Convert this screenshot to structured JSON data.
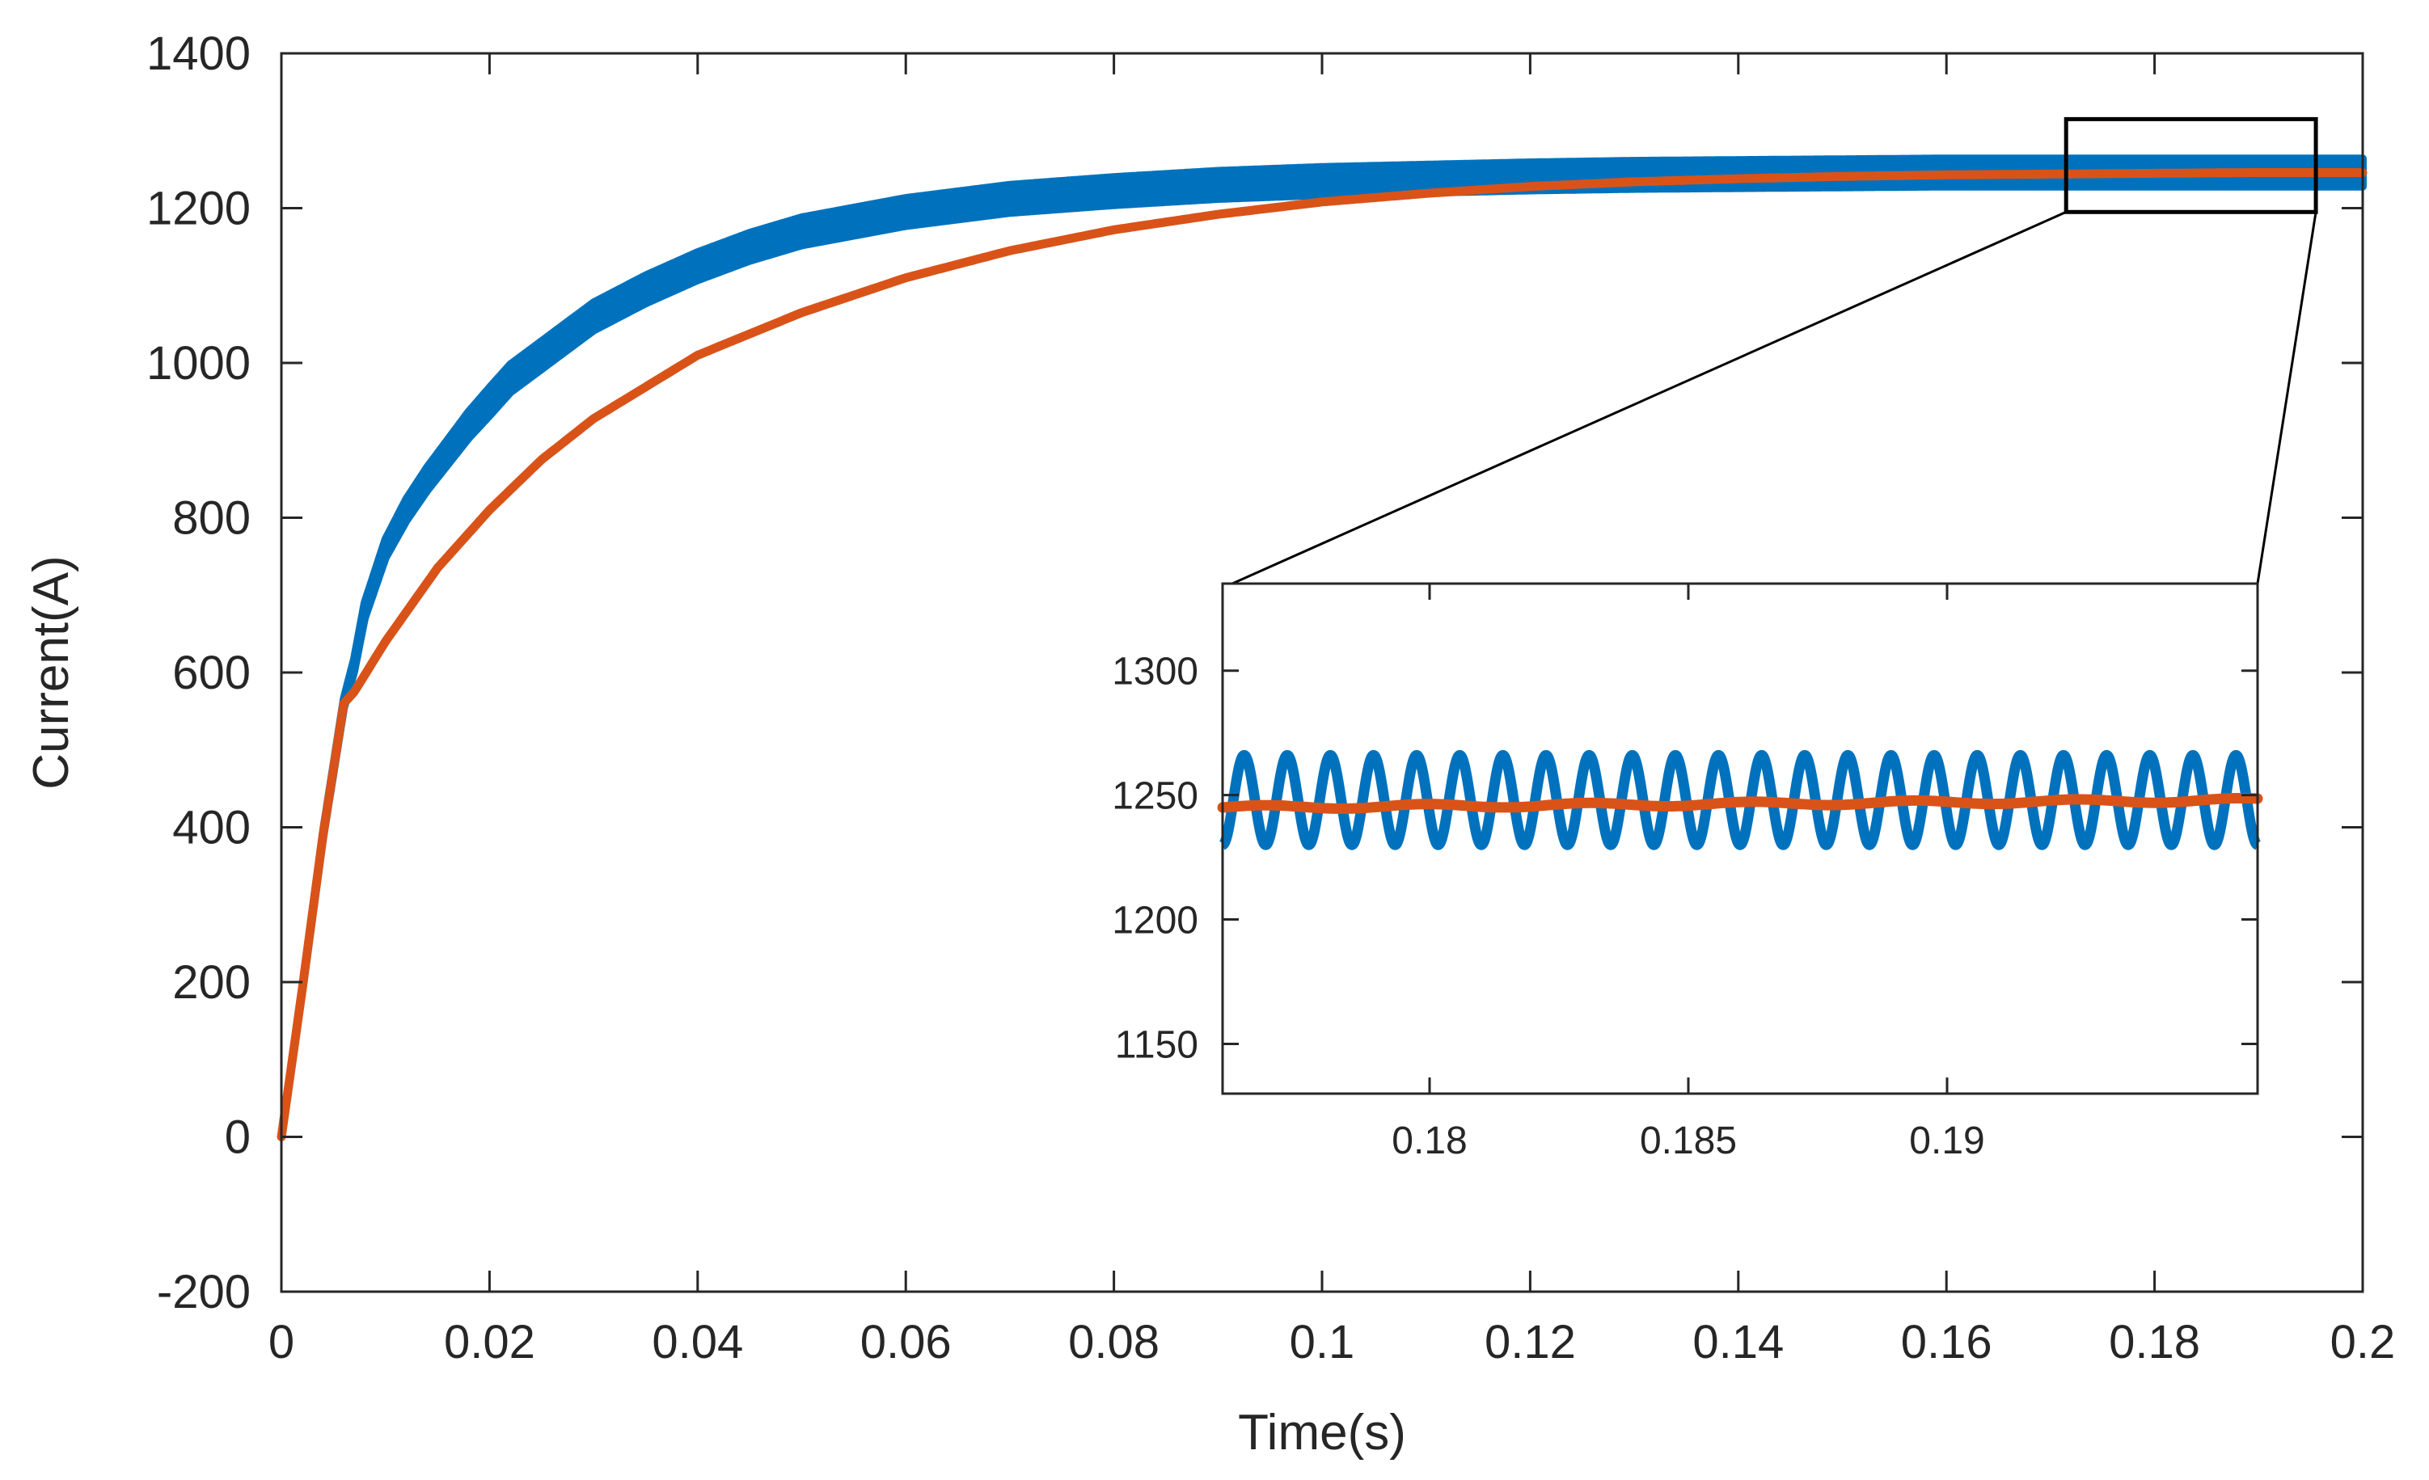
{
  "chart_data": {
    "type": "line",
    "title": "",
    "xlabel": "Time(s)",
    "ylabel": "Current(A)",
    "xlim": [
      0,
      0.2
    ],
    "ylim": [
      -200,
      1400
    ],
    "xticks": [
      0,
      0.02,
      0.04,
      0.06,
      0.08,
      0.1,
      0.12,
      0.14,
      0.16,
      0.18,
      0.2
    ],
    "xtick_labels": [
      "0",
      "0.02",
      "0.04",
      "0.06",
      "0.08",
      "0.1",
      "0.12",
      "0.14",
      "0.16",
      "0.18",
      "0.2"
    ],
    "yticks": [
      -200,
      0,
      200,
      400,
      600,
      800,
      1000,
      1200,
      1400
    ],
    "ytick_labels": [
      "-200",
      "0",
      "200",
      "400",
      "600",
      "800",
      "1000",
      "1200",
      "1400"
    ],
    "grid": false,
    "legend": null,
    "series": [
      {
        "name": "blue-series",
        "color": "#0072BD",
        "x": [
          0,
          0.002,
          0.004,
          0.006,
          0.007,
          0.008,
          0.01,
          0.012,
          0.014,
          0.016,
          0.018,
          0.02,
          0.022,
          0.025,
          0.03,
          0.035,
          0.04,
          0.045,
          0.05,
          0.06,
          0.07,
          0.08,
          0.09,
          0.1,
          0.11,
          0.12,
          0.13,
          0.14,
          0.15,
          0.16,
          0.17,
          0.18,
          0.19,
          0.2
        ],
        "y": [
          0,
          190,
          390,
          560,
          610,
          680,
          760,
          810,
          850,
          885,
          920,
          950,
          980,
          1010,
          1060,
          1095,
          1125,
          1150,
          1170,
          1195,
          1212,
          1222,
          1230,
          1235,
          1238,
          1241,
          1243,
          1244,
          1245,
          1246,
          1246,
          1246,
          1246,
          1246
        ],
        "ripple_amplitude": [
          0,
          2,
          4,
          6,
          8,
          10,
          12,
          14,
          15,
          16,
          17,
          18,
          18,
          18,
          18,
          18,
          18,
          18,
          18,
          18,
          18,
          18,
          18,
          18,
          18,
          18,
          18,
          18,
          18,
          18,
          18,
          18,
          18,
          18
        ]
      },
      {
        "name": "orange-series",
        "color": "#D95319",
        "x": [
          0,
          0.002,
          0.004,
          0.006,
          0.007,
          0.01,
          0.015,
          0.02,
          0.025,
          0.03,
          0.04,
          0.05,
          0.06,
          0.07,
          0.08,
          0.09,
          0.1,
          0.11,
          0.12,
          0.13,
          0.14,
          0.15,
          0.16,
          0.17,
          0.18,
          0.19,
          0.2
        ],
        "y": [
          0,
          190,
          390,
          560,
          575,
          640,
          735,
          810,
          875,
          928,
          1010,
          1065,
          1110,
          1145,
          1172,
          1192,
          1208,
          1219,
          1228,
          1234,
          1238,
          1241,
          1243,
          1244,
          1245,
          1246,
          1246
        ]
      }
    ],
    "zoom_box": {
      "xlim": [
        0.1715,
        0.1955
      ],
      "ylim": [
        1195,
        1315
      ]
    },
    "inset": {
      "xlim": [
        0.176,
        0.196
      ],
      "ylim": [
        1130,
        1335
      ],
      "xticks": [
        0.18,
        0.185,
        0.19
      ],
      "xtick_labels": [
        "0.18",
        "0.185",
        "0.19"
      ],
      "yticks": [
        1150,
        1200,
        1250,
        1300
      ],
      "ytick_labels": [
        "1150",
        "1200",
        "1250",
        "1300"
      ],
      "series": [
        {
          "name": "blue-series",
          "color": "#0072BD",
          "type": "sine",
          "mean": 1248,
          "amplitude": 18,
          "cycles": 24
        },
        {
          "name": "orange-series",
          "color": "#D95319",
          "type": "flat",
          "start": 1245,
          "end": 1248
        }
      ]
    }
  }
}
